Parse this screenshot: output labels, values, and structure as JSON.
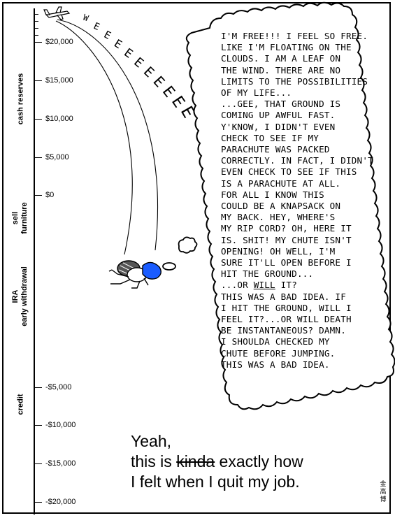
{
  "axis": {
    "ticks": [
      {
        "label": "$20,000",
        "value": 20000
      },
      {
        "label": "$15,000",
        "value": 15000
      },
      {
        "label": "$10,000",
        "value": 10000
      },
      {
        "label": "$5,000",
        "value": 5000
      },
      {
        "label": "$0",
        "value": 0
      },
      {
        "label": "-$5,000",
        "value": -5000
      },
      {
        "label": "-$10,000",
        "value": -10000
      },
      {
        "label": "-$15,000",
        "value": -15000
      },
      {
        "label": "-$20,000",
        "value": -20000
      }
    ],
    "regions": [
      {
        "name": "cash-reserves",
        "lines": [
          "cash reserves"
        ]
      },
      {
        "name": "sell-furniture",
        "lines": [
          "sell",
          "furniture"
        ]
      },
      {
        "name": "ira-early-withdrawal",
        "lines": [
          "IRA",
          "early withdrawal"
        ]
      },
      {
        "name": "credit",
        "lines": [
          "credit"
        ]
      }
    ]
  },
  "sound_effect": "WEEEEEEEEEE",
  "thought_bubble": {
    "text_before_underline": "I'M FREE!!! I FEEL SO FREE.\nLIKE I'M FLOATING ON THE\nCLOUDS. I AM A LEAF ON\nTHE WIND. THERE ARE NO\nLIMITS TO THE POSSIBILITIES\nOF MY LIFE...\n...GEE, THAT GROUND IS\nCOMING UP AWFUL FAST.\nY'KNOW, I DIDN'T EVEN\nCHECK TO SEE IF MY\nPARACHUTE WAS PACKED\nCORRECTLY. IN FACT, I DIDN'T\nEVEN CHECK TO SEE IF THIS\nIS A PARACHUTE AT ALL.\nFOR ALL I KNOW THIS\nCOULD BE A KNAPSACK ON\nMY BACK. HEY, WHERE'S\nMY RIP CORD? OH, HERE IT\nIS. SHIT! MY CHUTE ISN'T\nOPENING! OH WELL, I'M\nSURE IT'LL OPEN BEFORE I\nHIT THE GROUND...\n...OR ",
    "underlined": "WILL",
    "text_after_underline": " IT?\nTHIS WAS A BAD IDEA. IF\nI HIT THE GROUND, WILL I\nFEEL IT?...OR WILL DEATH\nBE INSTANTANEOUS? DAMN.\nI SHOULDA CHECKED MY\nCHUTE BEFORE JUMPING.\nTHIS WAS A BAD IDEA."
  },
  "caption": {
    "line1": "Yeah,",
    "line2_prefix": "this is ",
    "line2_strike": "kinda",
    "line2_suffix": " exactly how",
    "line3": "I felt when I quit my job."
  },
  "signature": "金高博",
  "colors": {
    "ink": "#000000",
    "background": "#ffffff",
    "helmet_blue": "#1a5cff",
    "parachute_gray": "#555555"
  }
}
